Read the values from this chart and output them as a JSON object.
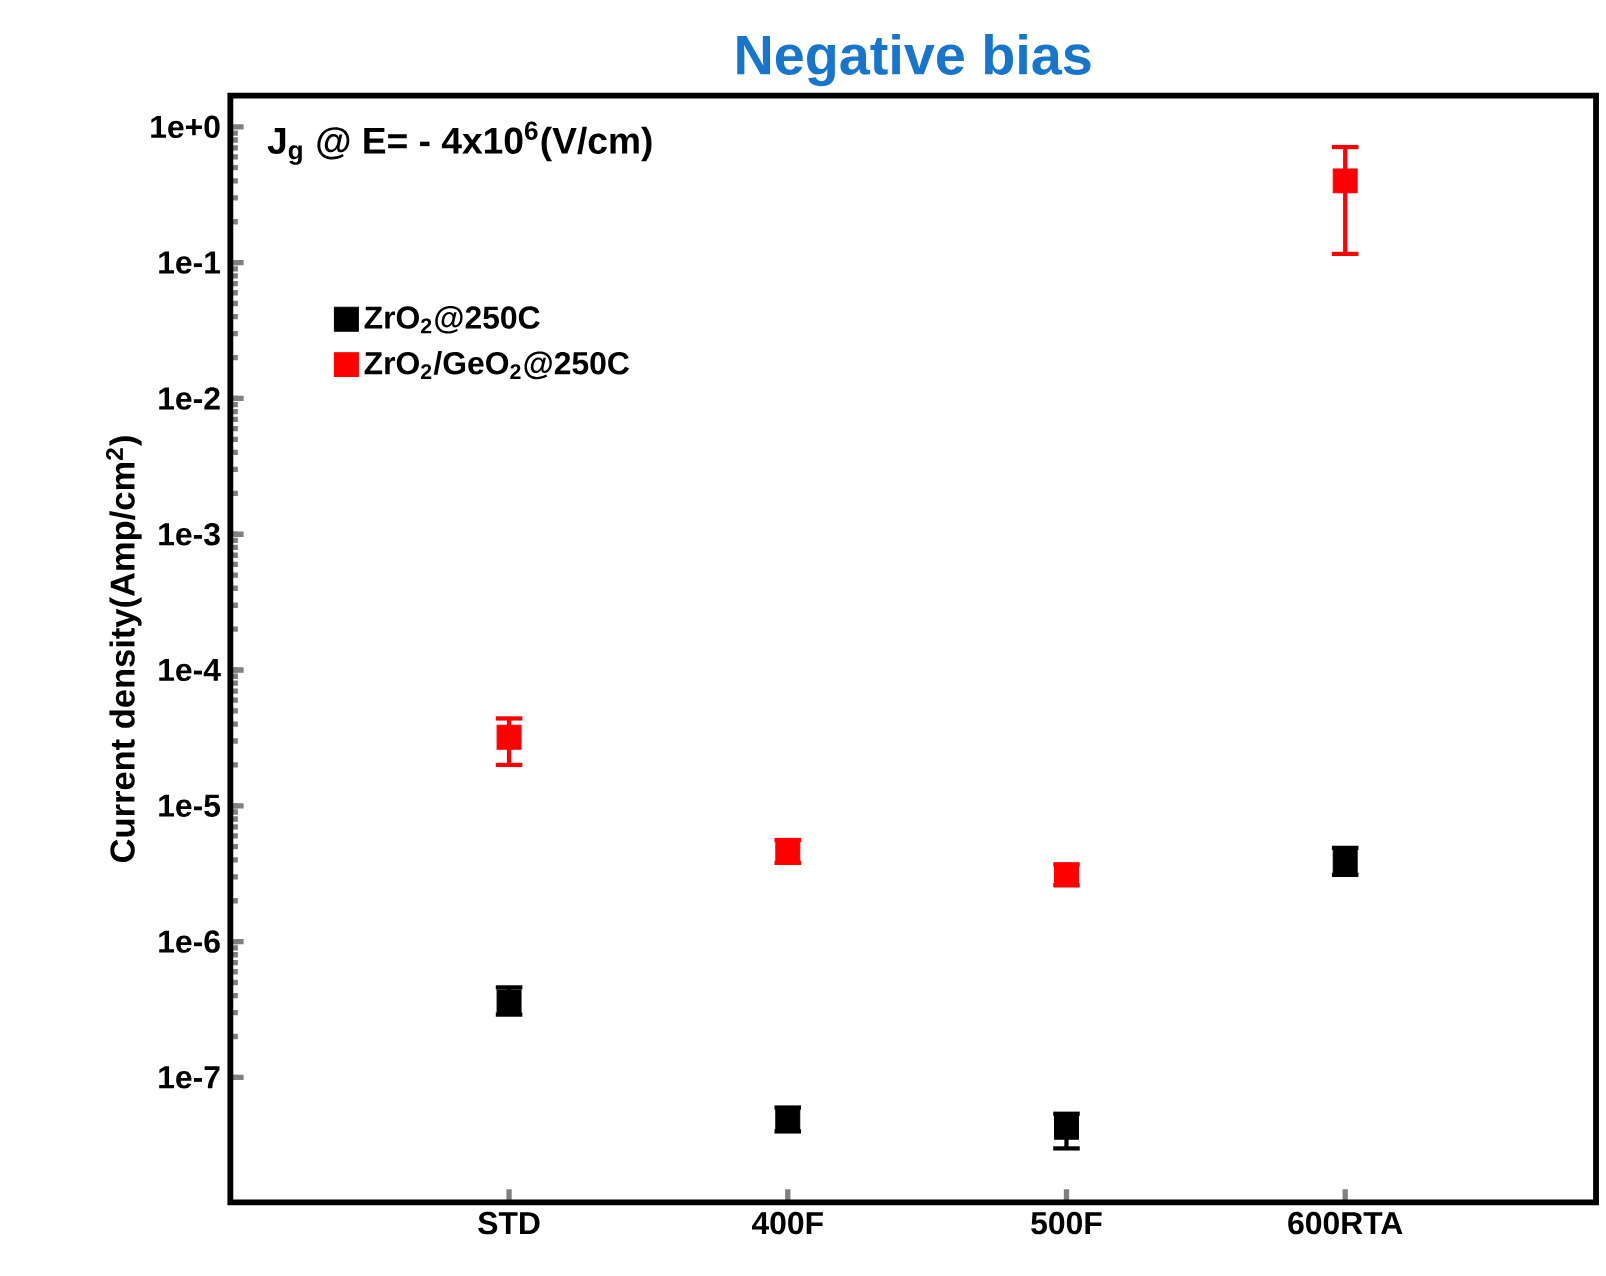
{
  "chart_data": {
    "type": "scatter",
    "title": "Negative bias",
    "ylabel": "Current density(Amp/cm$^{2}$)",
    "annotations": [
      "J$_{g}$ @ E= - 4x10$^{6}$(V/cm)"
    ],
    "categories": [
      "STD",
      "400F",
      "500F",
      "600RTA"
    ],
    "series": [
      {
        "name": "ZrO$_{2}$@250C",
        "color": "#000000",
        "values": [
          3.6e-07,
          4.9e-08,
          4.3e-08,
          3.9e-06
        ],
        "errors": [
          [
            2.9e-07,
            4.6e-07
          ],
          [
            4e-08,
            6e-08
          ],
          [
            3e-08,
            5.4e-08
          ],
          [
            3.1e-06,
            4.9e-06
          ]
        ]
      },
      {
        "name": "ZrO$_{2}$/GeO$_{2}$@250C",
        "color": "#ff0000",
        "values": [
          3.2e-05,
          4.6e-06,
          3.1e-06,
          0.4
        ],
        "errors": [
          [
            2e-05,
            4.4e-05
          ],
          [
            3.8e-06,
            5.6e-06
          ],
          [
            2.6e-06,
            3.7e-06
          ],
          [
            0.116,
            0.71
          ]
        ]
      }
    ],
    "log": "y",
    "ylim": [
      1.2e-08,
      1.7
    ],
    "yticks": [
      {
        "value": 1e-07,
        "label": "1e-7"
      },
      {
        "value": 1e-06,
        "label": "1e-6"
      },
      {
        "value": 1e-05,
        "label": "1e-5"
      },
      {
        "value": 0.0001,
        "label": "1e-4"
      },
      {
        "value": 0.001,
        "label": "1e-3"
      },
      {
        "value": 0.01,
        "label": "1e-2"
      },
      {
        "value": 0.1,
        "label": "1e-1"
      },
      {
        "value": 1,
        "label": "1e+0"
      }
    ],
    "marker": "square",
    "legend": "top left",
    "grid": false
  }
}
